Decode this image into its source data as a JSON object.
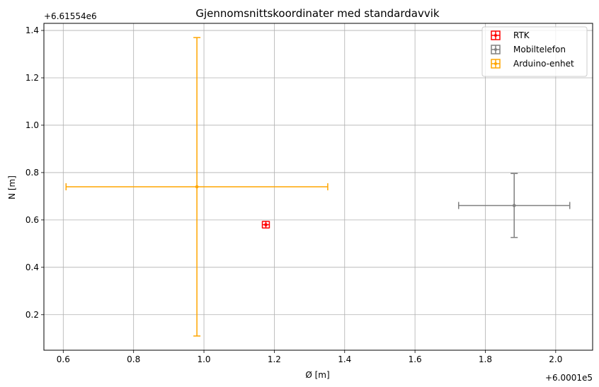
{
  "chart_data": {
    "type": "scatter",
    "title": "Gjennomsnittskoordinater med standardavvik",
    "xlabel": "Ø [m]",
    "ylabel": "N [m]",
    "x_offset_label": "+6.0001e5",
    "y_offset_label": "+6.61554e6",
    "xlim": [
      0.545,
      2.105
    ],
    "ylim": [
      0.05,
      1.43
    ],
    "x_ticks": [
      0.6,
      0.8,
      1.0,
      1.2,
      1.4,
      1.6,
      1.8,
      2.0
    ],
    "x_tick_labels": [
      "0.6",
      "0.8",
      "1.0",
      "1.2",
      "1.4",
      "1.6",
      "1.8",
      "2.0"
    ],
    "y_ticks": [
      0.2,
      0.4,
      0.6,
      0.8,
      1.0,
      1.2,
      1.4
    ],
    "y_tick_labels": [
      "0.2",
      "0.4",
      "0.6",
      "0.8",
      "1.0",
      "1.2",
      "1.4"
    ],
    "grid": true,
    "legend_position": "top-right",
    "series": [
      {
        "name": "RTK",
        "color": "#ff0000",
        "x": 1.176,
        "y": 0.58,
        "xerr": 0.01,
        "yerr": 0.014
      },
      {
        "name": "Mobiltelefon",
        "color": "#808080",
        "x": 1.882,
        "y": 0.661,
        "xerr": 0.158,
        "yerr": 0.135
      },
      {
        "name": "Arduino-enhet",
        "color": "#ffa500",
        "x": 0.98,
        "y": 0.74,
        "xerr": 0.372,
        "yerr": 0.63
      }
    ]
  }
}
